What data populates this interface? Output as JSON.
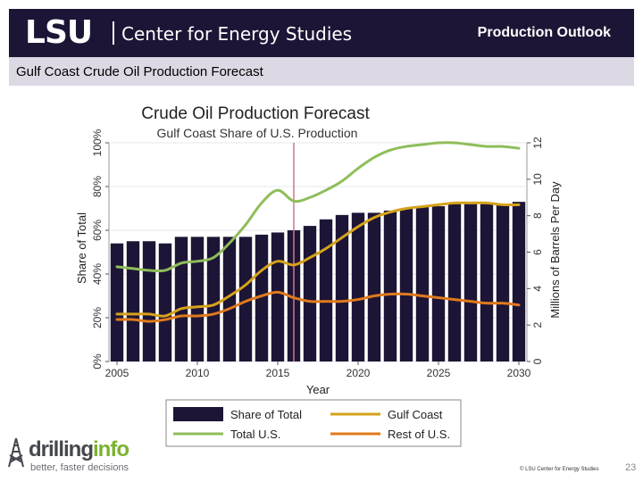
{
  "header": {
    "logo_text": "LSU",
    "org_name": "Center for Energy Studies",
    "section_title": "Production Outlook"
  },
  "subheader": {
    "title": "Gulf Coast Crude Oil Production Forecast"
  },
  "chart_data": {
    "type": "bar",
    "title": "Crude Oil Production Forecast",
    "subtitle": "Gulf Coast Share of U.S. Production",
    "xlabel": "Year",
    "ylabel_left": "Share of Total",
    "ylabel_right": "Millions of Barrels Per Day",
    "xlim": [
      2004.5,
      2030.5
    ],
    "ylim_left": [
      0,
      100
    ],
    "ylim_right": [
      0,
      12
    ],
    "x_ticks": [
      2005,
      2010,
      2015,
      2020,
      2025,
      2030
    ],
    "y_left_ticks": [
      "0%",
      "20%",
      "40%",
      "60%",
      "80%",
      "100%"
    ],
    "y_right_ticks": [
      "0",
      "2",
      "4",
      "6",
      "8",
      "10",
      "12"
    ],
    "grid": true,
    "legend_position": "bottom",
    "colors": {
      "share_of_total": "#1d1536",
      "gulf_coast": "#d6a21a",
      "total_us": "#8fbd5a",
      "rest_of_us": "#e07a1c",
      "reference_line": "#c97b8a"
    },
    "reference_line_x": 2016,
    "years": [
      2005,
      2006,
      2007,
      2008,
      2009,
      2010,
      2011,
      2012,
      2013,
      2014,
      2015,
      2016,
      2017,
      2018,
      2019,
      2020,
      2021,
      2022,
      2023,
      2024,
      2025,
      2026,
      2027,
      2028,
      2029,
      2030
    ],
    "series": [
      {
        "name": "Share of Total",
        "kind": "bar",
        "axis": "left",
        "values": [
          54,
          55,
          55,
          54,
          57,
          57,
          57,
          57,
          57,
          58,
          59,
          60,
          62,
          65,
          67,
          68,
          68,
          69,
          70,
          71,
          71,
          72,
          72,
          72,
          72,
          73
        ]
      },
      {
        "name": "Gulf Coast",
        "kind": "line",
        "axis": "right",
        "values": [
          2.6,
          2.6,
          2.6,
          2.5,
          2.9,
          3.0,
          3.1,
          3.6,
          4.2,
          5.0,
          5.5,
          5.3,
          5.7,
          6.2,
          6.8,
          7.4,
          7.9,
          8.2,
          8.4,
          8.5,
          8.6,
          8.7,
          8.7,
          8.7,
          8.6,
          8.6
        ]
      },
      {
        "name": "Total U.S.",
        "kind": "line",
        "axis": "right",
        "values": [
          5.2,
          5.1,
          5.0,
          5.0,
          5.4,
          5.5,
          5.7,
          6.5,
          7.5,
          8.7,
          9.4,
          8.8,
          9.0,
          9.4,
          9.9,
          10.6,
          11.2,
          11.6,
          11.8,
          11.9,
          12.0,
          12.0,
          11.9,
          11.8,
          11.8,
          11.7
        ]
      },
      {
        "name": "Rest of U.S.",
        "kind": "line",
        "axis": "right",
        "values": [
          2.3,
          2.3,
          2.2,
          2.3,
          2.5,
          2.5,
          2.6,
          2.9,
          3.3,
          3.6,
          3.8,
          3.5,
          3.3,
          3.3,
          3.3,
          3.4,
          3.6,
          3.7,
          3.7,
          3.6,
          3.5,
          3.4,
          3.3,
          3.2,
          3.2,
          3.1
        ]
      }
    ],
    "legend": [
      {
        "label": "Share of Total",
        "marker": "bar",
        "color": "#1d1536"
      },
      {
        "label": "Gulf Coast",
        "marker": "line",
        "color": "#d6a21a"
      },
      {
        "label": "Total U.S.",
        "marker": "line",
        "color": "#8fbd5a"
      },
      {
        "label": "Rest of U.S.",
        "marker": "line",
        "color": "#e07a1c"
      }
    ]
  },
  "footer": {
    "brand_prefix": "drilling",
    "brand_suffix": "info",
    "brand_tagline": "better, faster decisions",
    "copyright": "© LSU Center for Energy Studies",
    "page_number": "23"
  }
}
